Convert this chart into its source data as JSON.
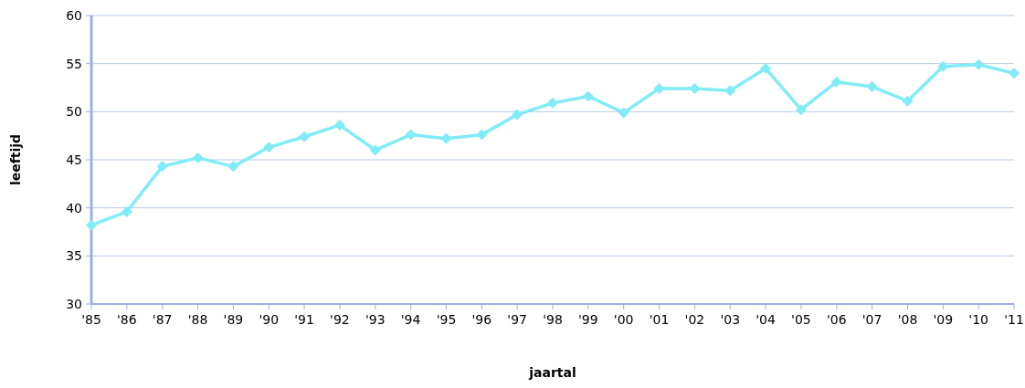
{
  "chart_data": {
    "type": "line",
    "xlabel": "jaartal",
    "ylabel": "leeftijd",
    "categories": [
      "'85",
      "'86",
      "'87",
      "'88",
      "'89",
      "'90",
      "'91",
      "'92",
      "'93",
      "'94",
      "'95",
      "'96",
      "'97",
      "'98",
      "'99",
      "'00",
      "'01",
      "'02",
      "'03",
      "'04",
      "'05",
      "'06",
      "'07",
      "'08",
      "'09",
      "'10",
      "'11"
    ],
    "series": [
      {
        "color": "#80ecf8",
        "values": [
          38.2,
          39.6,
          44.3,
          45.2,
          44.3,
          46.3,
          47.4,
          48.6,
          46.0,
          47.6,
          47.2,
          47.6,
          49.7,
          50.9,
          51.6,
          49.9,
          52.4,
          52.4,
          52.2,
          54.5,
          50.2,
          53.1,
          52.6,
          51.1,
          54.7,
          54.9,
          54.0
        ]
      }
    ],
    "ylim": [
      30,
      60
    ],
    "yticks": [
      30,
      35,
      40,
      45,
      50,
      55,
      60
    ],
    "grid": "y",
    "marker": "diamond",
    "line_style": "solid"
  }
}
